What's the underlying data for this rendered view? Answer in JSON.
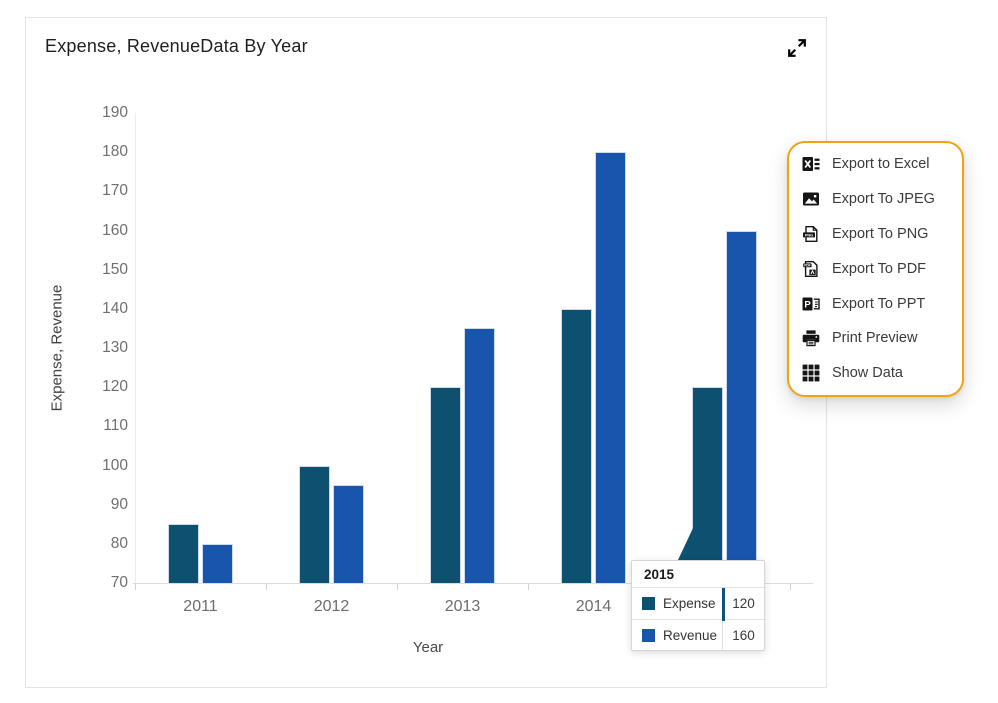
{
  "card": {
    "title": "Expense, RevenueData By Year"
  },
  "chart_data": {
    "type": "bar",
    "title": "Expense, RevenueData By Year",
    "xlabel": "Year",
    "ylabel": "Expense, Revenue",
    "categories": [
      "2011",
      "2012",
      "2013",
      "2014",
      "2015"
    ],
    "series": [
      {
        "name": "Expense",
        "color": "#0d506f",
        "values": [
          85,
          100,
          120,
          140,
          120
        ]
      },
      {
        "name": "Revenue",
        "color": "#1a55ad",
        "values": [
          80,
          95,
          135,
          180,
          160
        ]
      }
    ],
    "ylim": [
      70,
      190
    ],
    "yticks": [
      190,
      180,
      170,
      160,
      150,
      140,
      130,
      120,
      110,
      100,
      90,
      80,
      70
    ],
    "grid": false,
    "legend": "none"
  },
  "tooltip": {
    "title": "2015",
    "highlight_color": "#0f527f",
    "rows": [
      {
        "label": "Expense",
        "value": "120",
        "color": "#0d506f",
        "highlighted": true
      },
      {
        "label": "Revenue",
        "value": "160",
        "color": "#1a55ad",
        "highlighted": false
      }
    ]
  },
  "menu": {
    "border_color": "#f2a312",
    "items": [
      {
        "label": "Export to Excel",
        "icon": "excel-icon"
      },
      {
        "label": "Export To JPEG",
        "icon": "jpeg-icon"
      },
      {
        "label": "Export To PNG",
        "icon": "png-icon"
      },
      {
        "label": "Export To PDF",
        "icon": "pdf-icon"
      },
      {
        "label": "Export To PPT",
        "icon": "ppt-icon"
      },
      {
        "label": "Print Preview",
        "icon": "print-icon"
      },
      {
        "label": "Show Data",
        "icon": "show-data-icon"
      }
    ]
  }
}
